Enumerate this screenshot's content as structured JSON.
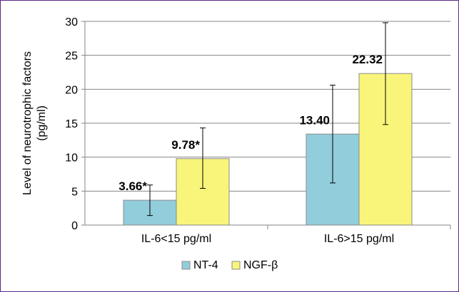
{
  "chart_data": {
    "type": "bar",
    "ylabel": "Level of neurotrophic factors\n(pg/ml)",
    "ylim": [
      0,
      30
    ],
    "yticks": [
      0,
      5,
      10,
      15,
      20,
      25,
      30
    ],
    "categories": [
      "IL-6<15 pg/ml",
      "IL-6>15 pg/ml"
    ],
    "grid": true,
    "legend_position": "bottom",
    "series": [
      {
        "name": "NT-4",
        "color": "#92cddc",
        "values": [
          3.66,
          13.4
        ],
        "labels": [
          "3.66*",
          "13.40"
        ],
        "error_low": [
          1.4,
          6.2
        ],
        "error_high": [
          5.9,
          20.6
        ]
      },
      {
        "name": "NGF-β",
        "color": "#f9f57a",
        "values": [
          9.78,
          22.32
        ],
        "labels": [
          "9.78*",
          "22.32"
        ],
        "error_low": [
          5.4,
          14.8
        ],
        "error_high": [
          14.3,
          29.8
        ]
      }
    ]
  }
}
